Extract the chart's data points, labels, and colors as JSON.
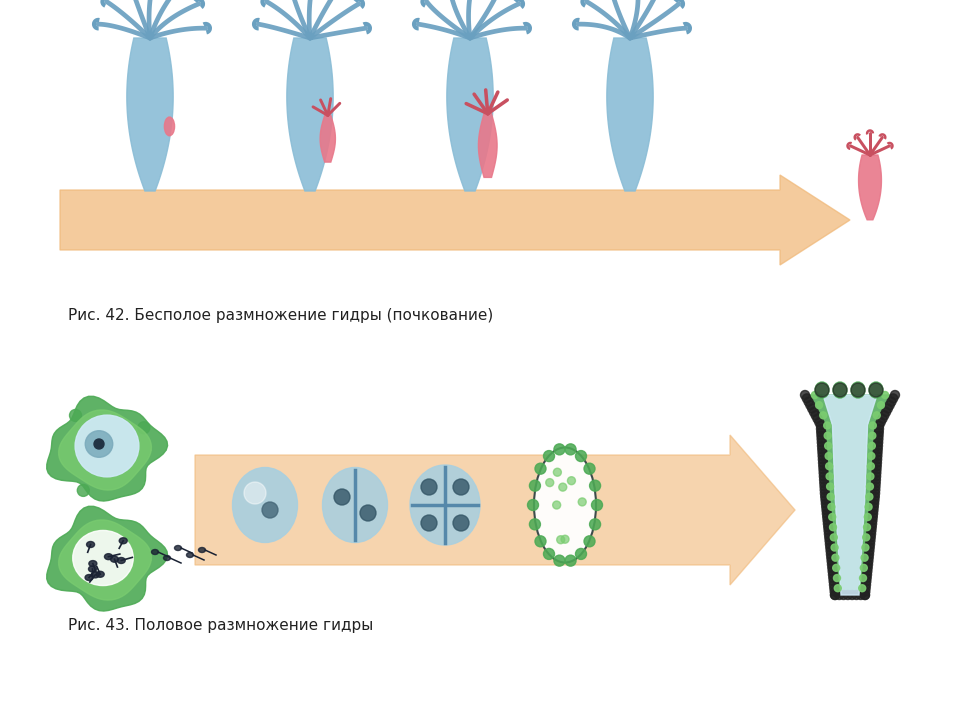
{
  "caption1": "Рис. 42. Бесполое размножение гидры (почкование)",
  "caption2": "Рис. 43. Половое размножение гидры",
  "hydra_blue": "#8bbdd6",
  "hydra_blue_dark": "#6aa0c0",
  "hydra_pink": "#e8788a",
  "hydra_pink_dark": "#c85060",
  "arrow_color": "#f0b878",
  "arrow_alpha": 0.75,
  "green_cell": "#4daa55",
  "green_cell_light": "#7acc70",
  "cell_blue": "#a8cfe0",
  "cell_blue_light": "#d0eaf8",
  "bg_color": "#ffffff",
  "caption_fontsize": 11
}
